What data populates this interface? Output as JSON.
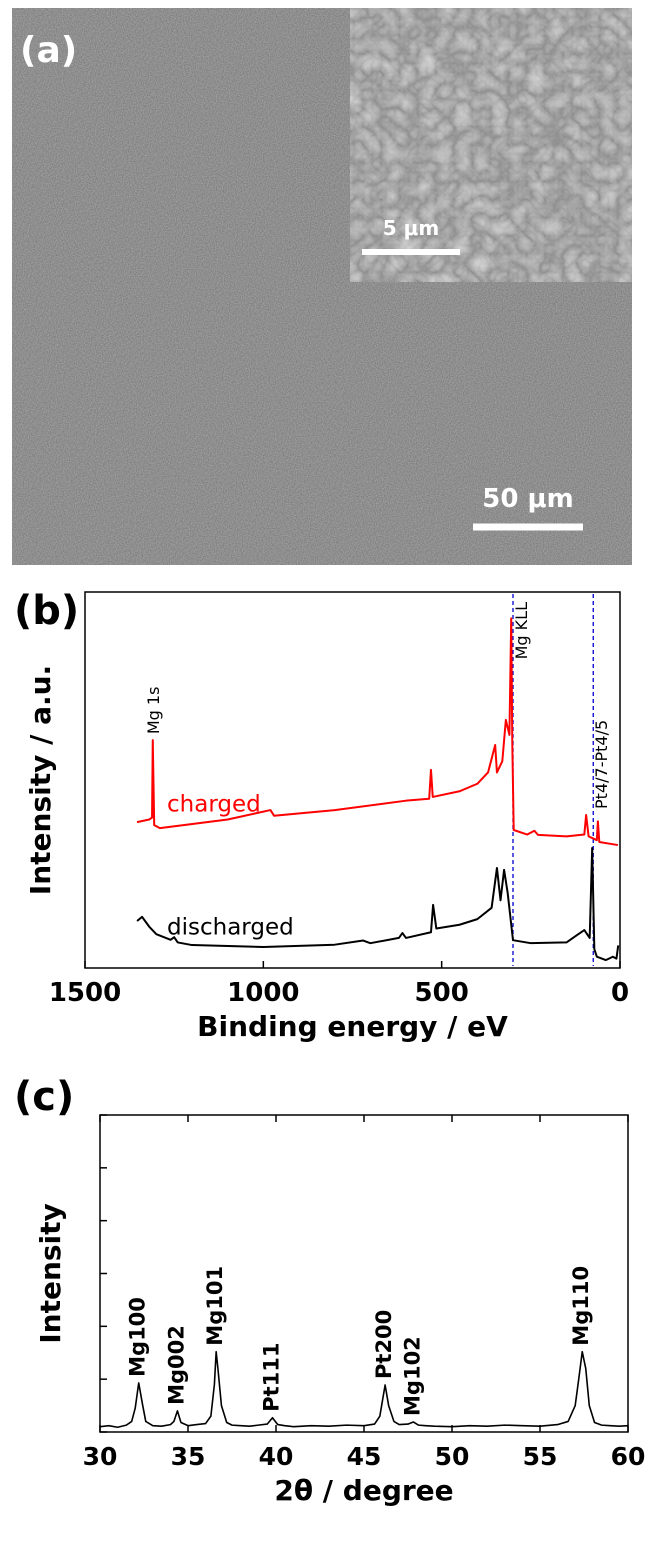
{
  "sem": {
    "label": "(a)",
    "inset_scale_bar": "5 μm",
    "scale_bar": "50 μm"
  },
  "chart_data": [
    {
      "type": "line",
      "panel_label": "(b)",
      "xlabel": "Binding energy / eV",
      "ylabel": "Intensity / a.u.",
      "xlim": [
        1500,
        0
      ],
      "xticks": [
        1500,
        1000,
        500,
        0
      ],
      "ylim": [
        0,
        100
      ],
      "vlines": [
        300,
        75
      ],
      "vline_color": "#0000cc",
      "series": [
        {
          "name": "charged",
          "color": "#ff0000",
          "x": [
            1354,
            1320,
            1312,
            1310,
            1306,
            1290,
            1100,
            980,
            970,
            800,
            600,
            535,
            530,
            525,
            450,
            400,
            370,
            350,
            345,
            330,
            320,
            310,
            305,
            302,
            298,
            260,
            240,
            230,
            150,
            100,
            95,
            88,
            65,
            62,
            58,
            6
          ],
          "values": [
            38.8,
            39.5,
            40,
            60.6,
            38,
            37.2,
            39.5,
            42,
            40.5,
            42,
            44.5,
            45,
            52.7,
            45.5,
            47,
            49,
            52,
            59.3,
            52,
            55,
            66,
            62,
            93,
            60,
            36.7,
            35.5,
            36.5,
            35.4,
            35,
            35.5,
            40.7,
            35,
            34,
            39,
            33.5,
            32.7
          ]
        },
        {
          "name": "discharged",
          "color": "#000000",
          "x": [
            1354,
            1340,
            1320,
            1300,
            1260,
            1250,
            1240,
            1200,
            1000,
            800,
            720,
            700,
            620,
            610,
            600,
            530,
            524,
            515,
            450,
            400,
            360,
            345,
            335,
            325,
            315,
            300,
            250,
            150,
            120,
            100,
            85,
            78,
            72,
            65,
            40,
            20,
            10,
            5
          ],
          "values": [
            12.5,
            13.6,
            11,
            9,
            7.5,
            8.2,
            6.8,
            6.1,
            5.6,
            6.2,
            7.3,
            6.6,
            8,
            9.3,
            8,
            9.5,
            16.8,
            10.5,
            11.5,
            13,
            16,
            26.6,
            18,
            26.1,
            20,
            7.4,
            6.6,
            6.8,
            8.8,
            10.1,
            8,
            31.9,
            5,
            3,
            2.1,
            3,
            2.5,
            6
          ]
        }
      ],
      "annotations": [
        {
          "text": "Mg 1s",
          "x": 1309
        },
        {
          "text": "Mg KLL",
          "x": 300
        },
        {
          "text": "Pt4/7-Pt4/5",
          "x": 75
        }
      ]
    },
    {
      "type": "line",
      "panel_label": "(c)",
      "xlabel": "2θ / degree",
      "ylabel": "Intensity",
      "xlim": [
        30,
        60
      ],
      "xticks": [
        30,
        35,
        40,
        45,
        50,
        55,
        60
      ],
      "ylim": [
        0,
        6
      ],
      "yticks": [
        0,
        1,
        2,
        3,
        4,
        5,
        6
      ],
      "ytick_labels": false,
      "mirror_ticks": true,
      "series": [
        {
          "color": "#000000",
          "x": [
            30,
            30.5,
            31,
            31.5,
            31.8,
            32.0,
            32.2,
            32.4,
            32.6,
            33,
            33.5,
            34,
            34.2,
            34.4,
            34.6,
            35,
            35.5,
            36,
            36.3,
            36.5,
            36.6,
            36.7,
            36.9,
            37.2,
            37.5,
            38,
            38.5,
            39,
            39.5,
            39.8,
            40.1,
            40.5,
            41,
            42,
            43,
            44,
            45,
            45.6,
            45.9,
            46.2,
            46.4,
            46.7,
            47,
            47.5,
            47.8,
            48.1,
            48.5,
            49,
            50,
            51,
            52,
            53,
            54,
            55,
            56,
            56.6,
            57,
            57.2,
            57.4,
            57.6,
            57.8,
            58.1,
            58.5,
            59,
            59.5,
            60
          ],
          "values": [
            0.1,
            0.12,
            0.09,
            0.13,
            0.2,
            0.45,
            0.93,
            0.55,
            0.2,
            0.12,
            0.11,
            0.14,
            0.2,
            0.4,
            0.18,
            0.12,
            0.14,
            0.16,
            0.3,
            0.9,
            1.52,
            1.2,
            0.5,
            0.18,
            0.13,
            0.12,
            0.11,
            0.13,
            0.15,
            0.27,
            0.14,
            0.12,
            0.1,
            0.12,
            0.11,
            0.13,
            0.12,
            0.15,
            0.3,
            0.89,
            0.5,
            0.2,
            0.14,
            0.15,
            0.19,
            0.13,
            0.12,
            0.11,
            0.1,
            0.12,
            0.11,
            0.13,
            0.12,
            0.11,
            0.14,
            0.2,
            0.5,
            1.0,
            1.52,
            1.2,
            0.5,
            0.18,
            0.13,
            0.12,
            0.11,
            0.12
          ]
        }
      ],
      "annotations": [
        {
          "text": "Mg100",
          "x": 32.2
        },
        {
          "text": "Mg002",
          "x": 34.4
        },
        {
          "text": "Mg101",
          "x": 36.6
        },
        {
          "text": "Pt111",
          "x": 39.8
        },
        {
          "text": "Pt200",
          "x": 46.2
        },
        {
          "text": "Mg102",
          "x": 47.8
        },
        {
          "text": "Mg110",
          "x": 57.4
        }
      ]
    }
  ]
}
